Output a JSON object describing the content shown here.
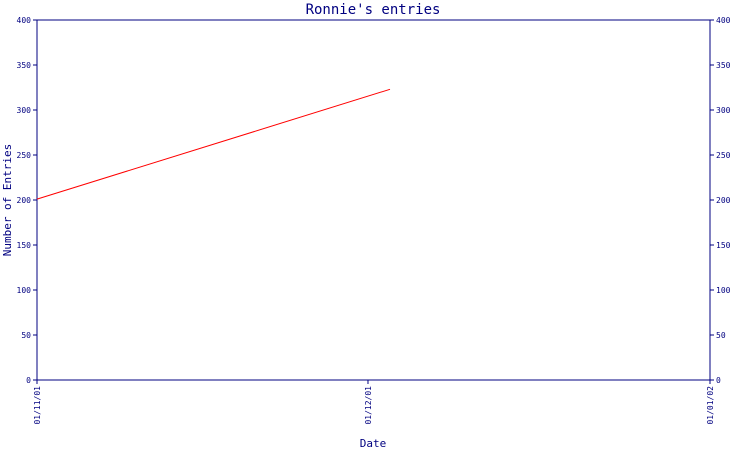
{
  "chart_data": {
    "type": "line",
    "title": "Ronnie's entries",
    "xlabel": "Date",
    "ylabel": "Number of Entries",
    "x_ticks": [
      "01/11/01",
      "01/12/01",
      "01/01/02"
    ],
    "y_ticks": [
      "0",
      "50",
      "100",
      "150",
      "200",
      "250",
      "300",
      "350",
      "400"
    ],
    "ylim": [
      0,
      400
    ],
    "xlim": [
      "01/11/01",
      "01/01/02"
    ],
    "grid": false,
    "series": [
      {
        "x": [
          "01/11/01",
          "03/12/01"
        ],
        "values": [
          201,
          323
        ],
        "color": "#ff0000"
      }
    ],
    "axis_color": "#000080",
    "right_axis_mirrors_left": true
  }
}
